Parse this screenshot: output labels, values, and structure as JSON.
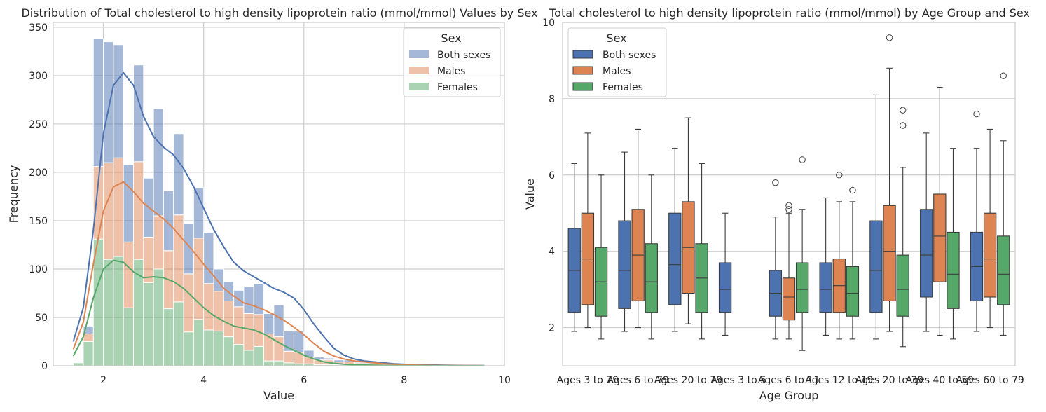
{
  "colors": {
    "both_sexes": "#4c72b0",
    "males": "#dd8452",
    "females": "#55a868",
    "grid": "#cccccc",
    "frame": "#cccccc",
    "background": "#ffffff"
  },
  "chart_data": [
    {
      "type": "bar",
      "subtype": "stacked histogram with KDE lines",
      "title": "Distribution of Total cholesterol to high density lipoprotein ratio (mmol/mmol) Values by Sex",
      "xlabel": "Value",
      "ylabel": "Frequency",
      "xlim": [
        1.0,
        10.0
      ],
      "ylim": [
        0,
        355
      ],
      "xticks": [
        2,
        4,
        6,
        8,
        10
      ],
      "yticks": [
        0,
        50,
        100,
        150,
        200,
        250,
        300,
        350
      ],
      "grid": true,
      "legend": {
        "title": "Sex",
        "placement": "top-right",
        "entries": [
          "Both sexes",
          "Males",
          "Females"
        ]
      },
      "bin_width": 0.2,
      "bins_start": [
        1.4,
        1.6,
        1.8,
        2.0,
        2.2,
        2.4,
        2.6,
        2.8,
        3.0,
        3.2,
        3.4,
        3.6,
        3.8,
        4.0,
        4.2,
        4.4,
        4.6,
        4.8,
        5.0,
        5.2,
        5.4,
        5.6,
        5.8,
        6.0,
        6.2,
        6.4,
        6.6,
        6.8,
        7.0,
        7.2,
        7.4,
        7.6,
        7.8,
        8.0,
        8.2,
        8.4,
        8.6,
        8.8,
        9.0,
        9.2,
        9.4
      ],
      "series": [
        {
          "name": "Females",
          "values": [
            3,
            25,
            131,
            110,
            113,
            60,
            110,
            86,
            100,
            59,
            66,
            35,
            48,
            37,
            36,
            30,
            22,
            16,
            20,
            5,
            5,
            3,
            2,
            2,
            1,
            1,
            1,
            1,
            1,
            0,
            0,
            0,
            1,
            0,
            0,
            0,
            0,
            0,
            0,
            0,
            1
          ]
        },
        {
          "name": "Males",
          "values": [
            0,
            8,
            75,
            100,
            102,
            68,
            101,
            47,
            55,
            60,
            90,
            60,
            84,
            48,
            41,
            37,
            39,
            38,
            33,
            28,
            25,
            12,
            12,
            7,
            5,
            5,
            3,
            3,
            2,
            2,
            2,
            1,
            1,
            1,
            0,
            0,
            0,
            0,
            0,
            0,
            0
          ]
        },
        {
          "name": "Both sexes",
          "values": [
            0,
            8,
            132,
            125,
            117,
            80,
            100,
            61,
            111,
            62,
            84,
            52,
            52,
            53,
            23,
            20,
            17,
            28,
            32,
            21,
            33,
            21,
            22,
            7,
            3,
            2,
            2,
            2,
            1,
            1,
            1,
            1,
            0,
            1,
            0,
            0,
            0,
            0,
            0,
            0,
            0
          ]
        }
      ],
      "kde": [
        {
          "name": "Both sexes",
          "x": [
            1.4,
            1.6,
            1.8,
            2.0,
            2.2,
            2.4,
            2.6,
            2.8,
            3.0,
            3.2,
            3.4,
            3.6,
            3.8,
            4.0,
            4.2,
            4.4,
            4.6,
            4.8,
            5.0,
            5.2,
            5.4,
            5.6,
            5.8,
            6.0,
            6.2,
            6.4,
            6.6,
            6.8,
            7.0,
            7.2,
            7.4,
            7.6,
            7.8,
            8.0,
            8.4,
            8.8,
            9.2,
            9.6
          ],
          "y": [
            25,
            60,
            140,
            240,
            290,
            303,
            290,
            258,
            237,
            226,
            218,
            204,
            185,
            163,
            141,
            123,
            107,
            98,
            92,
            86,
            80,
            76,
            70,
            58,
            43,
            30,
            18,
            11,
            7,
            5,
            4,
            3,
            2,
            1.5,
            1,
            0.5,
            0.3,
            0.2
          ]
        },
        {
          "name": "Males",
          "x": [
            1.4,
            1.6,
            1.8,
            2.0,
            2.2,
            2.4,
            2.6,
            2.8,
            3.0,
            3.2,
            3.4,
            3.6,
            3.8,
            4.0,
            4.2,
            4.4,
            4.6,
            4.8,
            5.0,
            5.2,
            5.4,
            5.6,
            5.8,
            6.0,
            6.2,
            6.4,
            6.6,
            6.8,
            7.0,
            7.2,
            7.4,
            7.6,
            7.8,
            8.0,
            8.4,
            8.8,
            9.2,
            9.6
          ],
          "y": [
            17,
            45,
            105,
            160,
            185,
            190,
            180,
            168,
            160,
            152,
            142,
            130,
            118,
            105,
            93,
            80,
            72,
            65,
            62,
            58,
            53,
            47,
            40,
            32,
            23,
            15,
            10,
            7,
            5,
            4,
            3,
            2,
            1.5,
            1,
            0.5,
            0.3,
            0.2,
            0.1
          ]
        },
        {
          "name": "Females",
          "x": [
            1.4,
            1.6,
            1.8,
            2.0,
            2.2,
            2.4,
            2.6,
            2.8,
            3.0,
            3.2,
            3.4,
            3.6,
            3.8,
            4.0,
            4.2,
            4.4,
            4.6,
            4.8,
            5.0,
            5.2,
            5.4,
            5.6,
            5.8,
            6.0,
            6.2,
            6.4,
            6.6,
            6.8,
            7.0,
            7.2,
            7.4,
            7.6,
            7.8,
            8.0,
            8.4,
            8.8,
            9.2,
            9.6
          ],
          "y": [
            10,
            30,
            70,
            100,
            109,
            107,
            97,
            91,
            92,
            91,
            87,
            80,
            70,
            60,
            52,
            46,
            41,
            39,
            37,
            33,
            27,
            21,
            16,
            11,
            7,
            4,
            2.5,
            1.5,
            1,
            0.7,
            0.5,
            0.3,
            0.2,
            0.1,
            0.1,
            0.05,
            0.02,
            0.01
          ]
        }
      ]
    },
    {
      "type": "box",
      "title": "Total cholesterol to high density lipoprotein ratio (mmol/mmol) by Age Group and Sex",
      "xlabel": "Age Group",
      "ylabel": "Value",
      "ylim": [
        1.0,
        10.0
      ],
      "yticks": [
        2,
        4,
        6,
        8,
        10
      ],
      "grid": true,
      "legend": {
        "title": "Sex",
        "placement": "top-left",
        "entries": [
          "Both sexes",
          "Males",
          "Females"
        ]
      },
      "categories": [
        "Ages 3 to 79",
        "Ages 6 to 79",
        "Ages 20 to 79",
        "Ages 3 to 5",
        "Ages 6 to 11",
        "Ages 12 to 19",
        "Ages 20 to 39",
        "Ages 40 to 59",
        "Ages 60 to 79"
      ],
      "series": [
        {
          "name": "Both sexes",
          "boxes": [
            {
              "whislo": 1.9,
              "q1": 2.4,
              "med": 3.5,
              "q3": 4.6,
              "whishi": 6.3,
              "fliers": []
            },
            {
              "whislo": 1.9,
              "q1": 2.5,
              "med": 3.5,
              "q3": 4.8,
              "whishi": 6.6,
              "fliers": []
            },
            {
              "whislo": 1.9,
              "q1": 2.6,
              "med": 3.65,
              "q3": 5.0,
              "whishi": 6.7,
              "fliers": []
            },
            {
              "whislo": 1.8,
              "q1": 2.4,
              "med": 3.0,
              "q3": 3.7,
              "whishi": 5.0,
              "fliers": []
            },
            {
              "whislo": 1.7,
              "q1": 2.3,
              "med": 2.9,
              "q3": 3.5,
              "whishi": 4.9,
              "fliers": [
                5.8
              ]
            },
            {
              "whislo": 1.8,
              "q1": 2.4,
              "med": 3.0,
              "q3": 3.7,
              "whishi": 5.4,
              "fliers": []
            },
            {
              "whislo": 1.7,
              "q1": 2.4,
              "med": 3.5,
              "q3": 4.8,
              "whishi": 8.1,
              "fliers": []
            },
            {
              "whislo": 1.9,
              "q1": 2.8,
              "med": 3.9,
              "q3": 5.1,
              "whishi": 7.1,
              "fliers": []
            },
            {
              "whislo": 1.9,
              "q1": 2.7,
              "med": 3.6,
              "q3": 4.5,
              "whishi": 6.7,
              "fliers": [
                7.6
              ]
            }
          ]
        },
        {
          "name": "Males",
          "boxes": [
            {
              "whislo": 2.0,
              "q1": 2.6,
              "med": 3.8,
              "q3": 5.0,
              "whishi": 7.1,
              "fliers": []
            },
            {
              "whislo": 2.0,
              "q1": 2.7,
              "med": 3.9,
              "q3": 5.1,
              "whishi": 7.2,
              "fliers": []
            },
            {
              "whislo": 2.1,
              "q1": 2.9,
              "med": 4.1,
              "q3": 5.3,
              "whishi": 7.5,
              "fliers": []
            },
            null,
            {
              "whislo": 1.7,
              "q1": 2.2,
              "med": 2.8,
              "q3": 3.3,
              "whishi": 5.0,
              "fliers": [
                5.1,
                5.2
              ]
            },
            {
              "whislo": 1.7,
              "q1": 2.4,
              "med": 3.1,
              "q3": 3.8,
              "whishi": 5.3,
              "fliers": [
                6.0
              ]
            },
            {
              "whislo": 1.9,
              "q1": 2.7,
              "med": 4.0,
              "q3": 5.2,
              "whishi": 8.8,
              "fliers": [
                9.6
              ]
            },
            {
              "whislo": 1.8,
              "q1": 3.2,
              "med": 4.4,
              "q3": 5.5,
              "whishi": 8.3,
              "fliers": []
            },
            {
              "whislo": 2.0,
              "q1": 2.8,
              "med": 3.8,
              "q3": 5.0,
              "whishi": 7.2,
              "fliers": []
            }
          ]
        },
        {
          "name": "Females",
          "boxes": [
            {
              "whislo": 1.7,
              "q1": 2.3,
              "med": 3.2,
              "q3": 4.1,
              "whishi": 6.0,
              "fliers": []
            },
            {
              "whislo": 1.7,
              "q1": 2.4,
              "med": 3.2,
              "q3": 4.2,
              "whishi": 6.0,
              "fliers": []
            },
            {
              "whislo": 1.7,
              "q1": 2.4,
              "med": 3.3,
              "q3": 4.2,
              "whishi": 6.3,
              "fliers": []
            },
            null,
            {
              "whislo": 1.4,
              "q1": 2.4,
              "med": 3.0,
              "q3": 3.7,
              "whishi": 5.1,
              "fliers": [
                6.4
              ]
            },
            {
              "whislo": 1.7,
              "q1": 2.3,
              "med": 2.9,
              "q3": 3.6,
              "whishi": 5.3,
              "fliers": [
                5.6
              ]
            },
            {
              "whislo": 1.5,
              "q1": 2.3,
              "med": 3.0,
              "q3": 3.9,
              "whishi": 6.2,
              "fliers": [
                7.3,
                7.7
              ]
            },
            {
              "whislo": 1.7,
              "q1": 2.5,
              "med": 3.4,
              "q3": 4.5,
              "whishi": 6.7,
              "fliers": []
            },
            {
              "whislo": 1.8,
              "q1": 2.6,
              "med": 3.4,
              "q3": 4.4,
              "whishi": 6.9,
              "fliers": [
                8.6
              ]
            }
          ]
        }
      ]
    }
  ]
}
